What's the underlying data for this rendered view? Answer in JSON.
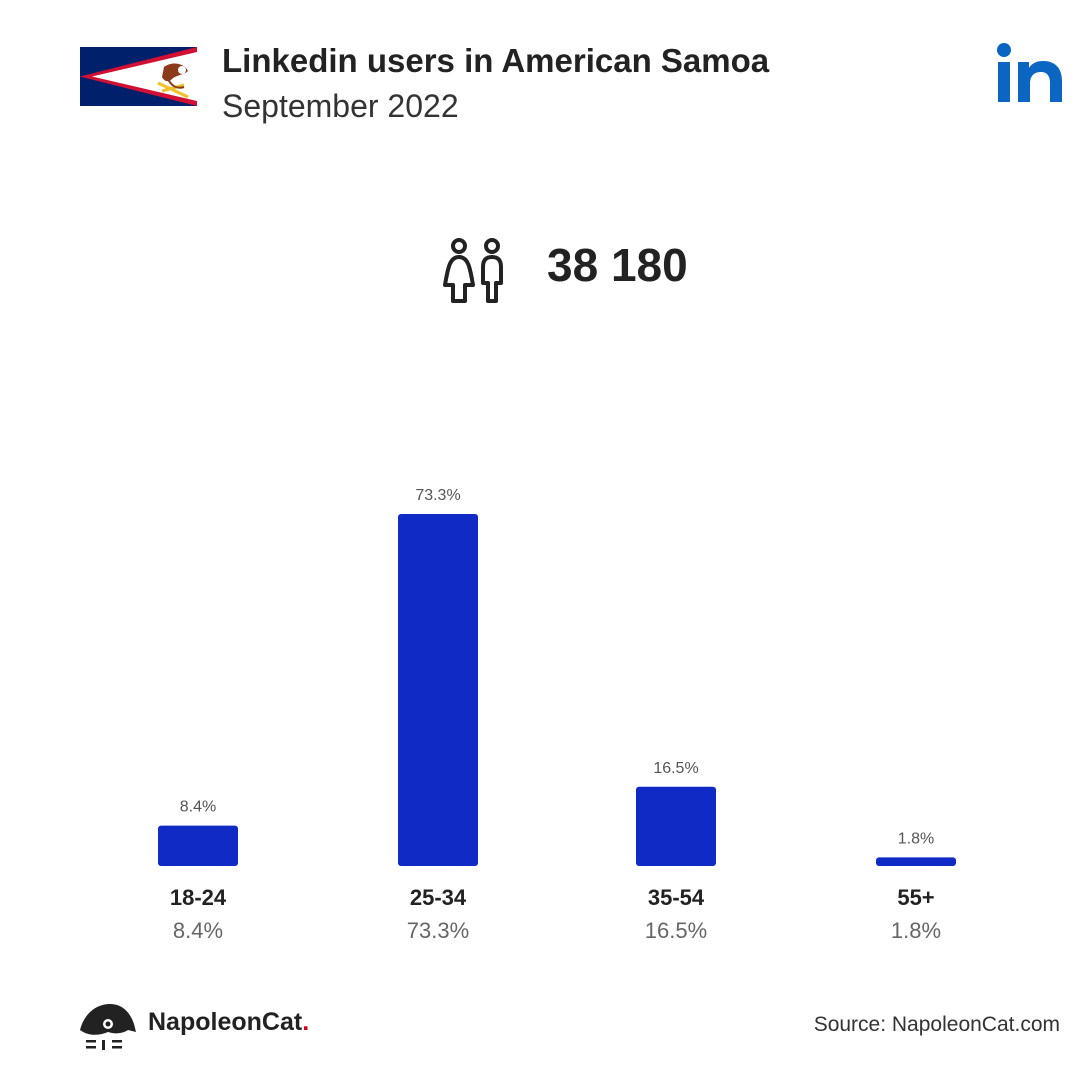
{
  "header": {
    "title": "Linkedin users in American Samoa",
    "subtitle": "September 2022"
  },
  "total": {
    "value": "38 180",
    "icon": "users-icon"
  },
  "icons": {
    "flag": "american-samoa-flag-icon",
    "platform": "linkedin-logo-icon"
  },
  "colors": {
    "bar": "#102ac5",
    "linkedin": "#0a66c2",
    "brand_dot": "#d0021b"
  },
  "chart_data": {
    "type": "bar",
    "categories": [
      "18-24",
      "25-34",
      "35-54",
      "55+"
    ],
    "values": [
      8.4,
      73.3,
      16.5,
      1.8
    ],
    "value_labels": [
      "8.4%",
      "73.3%",
      "16.5%",
      "1.8%"
    ],
    "title": "",
    "xlabel": "",
    "ylabel": "",
    "ylim": [
      0,
      73.3
    ],
    "grid": false
  },
  "footer": {
    "brand": "NapoleonCat",
    "brand_dot": ".",
    "source": "Source: NapoleonCat.com"
  }
}
